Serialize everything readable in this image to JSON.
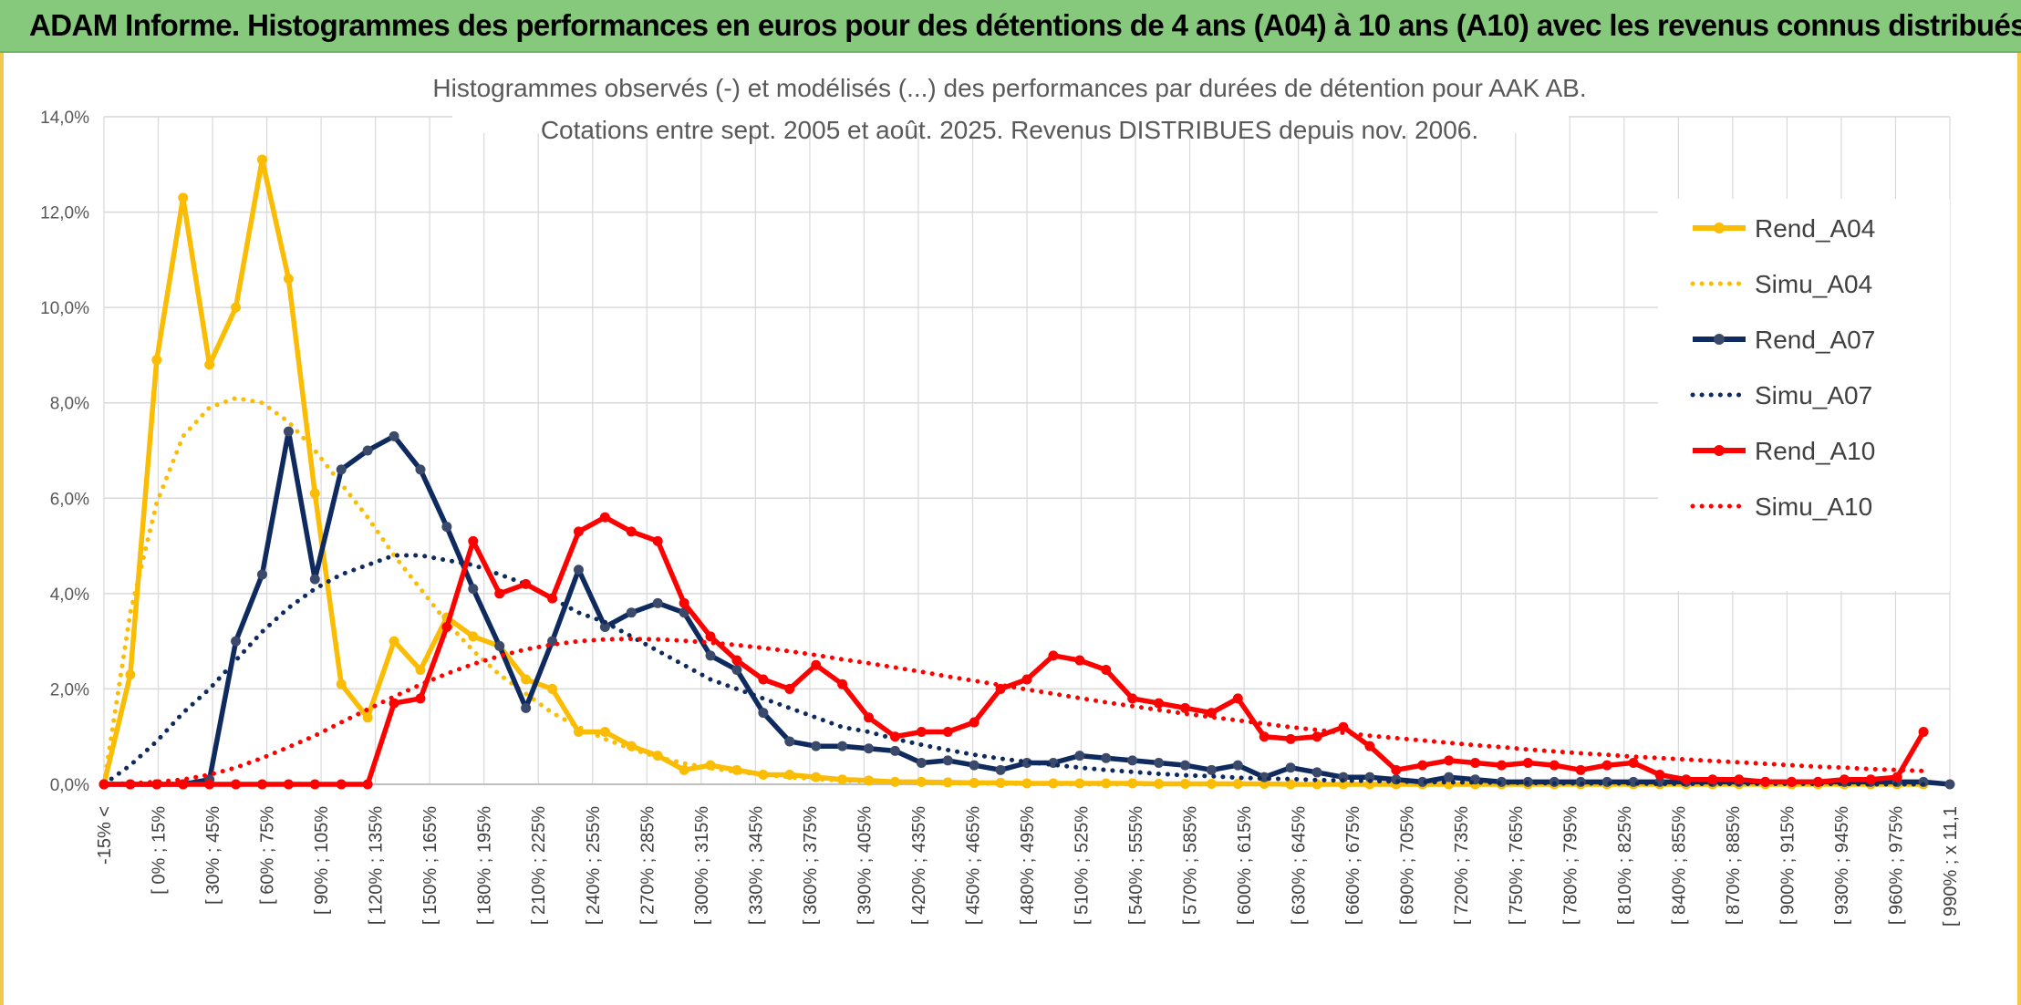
{
  "banner": {
    "title": "ADAM Informe. Histogrammes des performances en euros pour des détentions de 4 ans (A04) à 10 ans (A10) avec les revenus connus distribués"
  },
  "colors": {
    "A04": "#fbbc04",
    "A07": "#0e2a5e",
    "A10": "#ff0000",
    "grid": "#d9d9d9",
    "banner": "#86c97c"
  },
  "chart_data": {
    "type": "line",
    "title": [
      "Histogrammes observés (-) et modélisés (...) des performances par durées de détention pour AAK AB.",
      "Cotations entre sept. 2005 et août. 2025. Revenus DISTRIBUES depuis nov. 2006."
    ],
    "xlabel": "",
    "ylabel": "",
    "ylim": [
      0,
      0.14
    ],
    "yticks": [
      "0,0%",
      "2,0%",
      "4,0%",
      "6,0%",
      "8,0%",
      "10,0%",
      "12,0%",
      "14,0%"
    ],
    "grid": true,
    "legend_position": "right",
    "x_tick_labels": [
      "-15% <",
      "[ 0% ; 15%",
      "[ 30% ; 45%",
      "[ 60% ; 75%",
      "[ 90% ; 105%",
      "[ 120% ; 135%",
      "[ 150% ; 165%",
      "[ 180% ; 195%",
      "[ 210% ; 225%",
      "[ 240% ; 255%",
      "[ 270% ; 285%",
      "[ 300% ; 315%",
      "[ 330% ; 345%",
      "[ 360% ; 375%",
      "[ 390% ; 405%",
      "[ 420% ; 435%",
      "[ 450% ; 465%",
      "[ 480% ; 495%",
      "[ 510% ; 525%",
      "[ 540% ; 555%",
      "[ 570% ; 585%",
      "[ 600% ; 615%",
      "[ 630% ; 645%",
      "[ 660% ; 675%",
      "[ 690% ; 705%",
      "[ 720% ; 735%",
      "[ 750% ; 765%",
      "[ 780% ; 795%",
      "[ 810% ; 825%",
      "[ 840% ; 855%",
      "[ 870% ; 885%",
      "[ 900% ; 915%",
      "[ 930% ; 945%",
      "[ 960% ; 975%",
      "[ 990% ; x 11,1"
    ],
    "series": [
      {
        "name": "Rend_A04",
        "style": "solid",
        "color": "#fbbc04",
        "values": [
          0.0,
          0.023,
          0.089,
          0.123,
          0.088,
          0.1,
          0.131,
          0.106,
          0.061,
          0.021,
          0.014,
          0.03,
          0.024,
          0.035,
          0.031,
          0.029,
          0.022,
          0.02,
          0.011,
          0.011,
          0.008,
          0.006,
          0.003,
          0.004,
          0.003,
          0.002,
          0.002,
          0.0015,
          0.001,
          0.0008,
          0.0005,
          0.0005,
          0.0004,
          0.0003,
          0.0003,
          0.0002,
          0.0002,
          0.0002,
          0.0002,
          0.0002,
          0.0001,
          0.0001,
          0.0001,
          0.0001,
          0.0001,
          0.0,
          0.0,
          0.0,
          0.0,
          0.0,
          0.0,
          0.0,
          0.0,
          0.0,
          0.0,
          0.0,
          0.0,
          0.0,
          0.0,
          0.0,
          0.0,
          0.0,
          0.0,
          0.0,
          0.0,
          0.0,
          0.0,
          0.0,
          0.0,
          0.0
        ]
      },
      {
        "name": "Simu_A04",
        "style": "dotted",
        "color": "#fbbc04",
        "values": [
          0.0,
          0.036,
          0.059,
          0.073,
          0.079,
          0.081,
          0.08,
          0.076,
          0.07,
          0.063,
          0.056,
          0.048,
          0.041,
          0.034,
          0.028,
          0.023,
          0.019,
          0.015,
          0.012,
          0.0095,
          0.0074,
          0.0057,
          0.0044,
          0.0034,
          0.0026,
          0.002,
          0.0015,
          0.0011,
          0.0008,
          0.0006,
          0.0005,
          0.0003,
          0.0002,
          0.0002,
          0.0001,
          0.0001,
          0.0001,
          0.0,
          0.0,
          0.0,
          0.0,
          0.0,
          0.0,
          0.0,
          0.0,
          0.0,
          0.0,
          0.0,
          0.0,
          0.0,
          0.0,
          0.0,
          0.0,
          0.0,
          0.0,
          0.0,
          0.0,
          0.0,
          0.0,
          0.0,
          0.0,
          0.0,
          0.0,
          0.0,
          0.0,
          0.0,
          0.0,
          0.0,
          0.0,
          0.0
        ]
      },
      {
        "name": "Rend_A07",
        "style": "solid",
        "color": "#0e2a5e",
        "values": [
          0.0,
          0.0,
          0.0,
          0.0,
          0.001,
          0.03,
          0.044,
          0.074,
          0.043,
          0.066,
          0.07,
          0.073,
          0.066,
          0.054,
          0.041,
          0.029,
          0.016,
          0.03,
          0.045,
          0.033,
          0.036,
          0.038,
          0.036,
          0.027,
          0.024,
          0.015,
          0.009,
          0.008,
          0.008,
          0.0075,
          0.007,
          0.0045,
          0.005,
          0.004,
          0.003,
          0.0045,
          0.0045,
          0.006,
          0.0055,
          0.005,
          0.0045,
          0.004,
          0.003,
          0.004,
          0.0015,
          0.0035,
          0.0025,
          0.0015,
          0.0015,
          0.001,
          0.0005,
          0.0015,
          0.001,
          0.0005,
          0.0005,
          0.0005,
          0.0005,
          0.0005,
          0.0005,
          0.0005,
          0.0005,
          0.0005,
          0.0005,
          0.0005,
          0.0005,
          0.0005,
          0.0005,
          0.0005,
          0.0005,
          0.0005,
          0.0
        ]
      },
      {
        "name": "Simu_A07",
        "style": "dotted",
        "color": "#0e2a5e",
        "values": [
          0.0,
          0.004,
          0.009,
          0.015,
          0.02,
          0.026,
          0.032,
          0.037,
          0.041,
          0.044,
          0.046,
          0.048,
          0.048,
          0.047,
          0.046,
          0.044,
          0.042,
          0.039,
          0.036,
          0.034,
          0.031,
          0.028,
          0.025,
          0.022,
          0.02,
          0.018,
          0.016,
          0.014,
          0.012,
          0.011,
          0.0095,
          0.0083,
          0.0072,
          0.0062,
          0.0054,
          0.0047,
          0.0041,
          0.0035,
          0.003,
          0.0026,
          0.0022,
          0.0019,
          0.0017,
          0.0014,
          0.0012,
          0.0011,
          0.0009,
          0.0008,
          0.0007,
          0.0006,
          0.0005,
          0.0004,
          0.0004,
          0.0003,
          0.0003,
          0.0002,
          0.0002,
          0.0002,
          0.0002,
          0.0001,
          0.0001,
          0.0001,
          0.0001,
          0.0001,
          0.0001,
          0.0001,
          0.0001,
          0.0,
          0.0,
          0.0
        ]
      },
      {
        "name": "Rend_A10",
        "style": "solid",
        "color": "#ff0000",
        "values": [
          0.0,
          0.0,
          0.0,
          0.0,
          0.0,
          0.0,
          0.0,
          0.0,
          0.0,
          0.0,
          0.0,
          0.017,
          0.018,
          0.033,
          0.051,
          0.04,
          0.042,
          0.039,
          0.053,
          0.056,
          0.053,
          0.051,
          0.038,
          0.031,
          0.026,
          0.022,
          0.02,
          0.025,
          0.021,
          0.014,
          0.01,
          0.011,
          0.011,
          0.013,
          0.02,
          0.022,
          0.027,
          0.026,
          0.024,
          0.018,
          0.017,
          0.016,
          0.015,
          0.018,
          0.01,
          0.0095,
          0.01,
          0.012,
          0.008,
          0.003,
          0.004,
          0.005,
          0.0045,
          0.004,
          0.0045,
          0.004,
          0.003,
          0.004,
          0.0045,
          0.002,
          0.001,
          0.001,
          0.001,
          0.0005,
          0.0005,
          0.0005,
          0.001,
          0.001,
          0.0015,
          0.011
        ]
      },
      {
        "name": "Simu_A10",
        "style": "dotted",
        "color": "#ff0000",
        "values": [
          0.0,
          0.0002,
          0.0005,
          0.001,
          0.002,
          0.0035,
          0.0055,
          0.0078,
          0.0102,
          0.013,
          0.0157,
          0.0184,
          0.0209,
          0.0232,
          0.0252,
          0.0269,
          0.0283,
          0.0293,
          0.03,
          0.0304,
          0.0305,
          0.0304,
          0.0301,
          0.0297,
          0.0292,
          0.0286,
          0.0279,
          0.0271,
          0.0262,
          0.0254,
          0.0245,
          0.0236,
          0.0226,
          0.0217,
          0.0208,
          0.0199,
          0.019,
          0.0181,
          0.0172,
          0.0164,
          0.0156,
          0.0148,
          0.0141,
          0.0134,
          0.0127,
          0.012,
          0.0114,
          0.0108,
          0.0102,
          0.0097,
          0.0092,
          0.0087,
          0.0082,
          0.0078,
          0.0073,
          0.0069,
          0.0065,
          0.0062,
          0.0058,
          0.0055,
          0.0052,
          0.0049,
          0.0046,
          0.0043,
          0.004,
          0.0037,
          0.0035,
          0.0032,
          0.003,
          0.0028
        ]
      }
    ]
  }
}
